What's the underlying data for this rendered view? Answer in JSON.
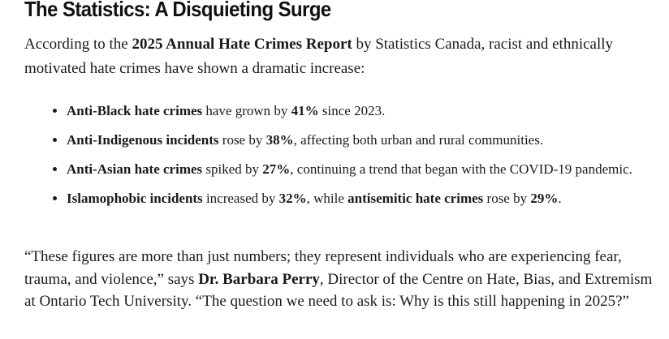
{
  "heading": "The Statistics: A Disquieting Surge",
  "intro": {
    "t1": "According to the ",
    "b1": "2025 Annual Hate Crimes Report",
    "t2": " by Statistics Canada, racist and ethnically motivated hate crimes have shown a dramatic increase:"
  },
  "bullets": [
    {
      "b1": "Anti-Black hate crimes",
      "t1": " have grown by ",
      "b2": "41%",
      "t2": " since 2023."
    },
    {
      "b1": "Anti-Indigenous incidents",
      "t1": " rose by ",
      "b2": "38%",
      "t2": ", affecting both urban and rural communities."
    },
    {
      "b1": "Anti-Asian hate crimes",
      "t1": " spiked by ",
      "b2": "27%",
      "t2": ", continuing a trend that began with the COVID-19 pandemic."
    },
    {
      "b1": "Islamophobic incidents",
      "t1": " increased by ",
      "b2": "32%",
      "t2": ", while ",
      "b3": "antisemitic hate crimes",
      "t3": " rose by ",
      "b4": "29%",
      "t4": "."
    }
  ],
  "quote": {
    "t1": "“These figures are more than just numbers; they represent individuals who are experiencing fear, trauma, and violence,” says ",
    "b1": "Dr. Barbara Perry",
    "t2": ", Director of the Centre on Hate, Bias, and Extremism at Ontario Tech University. “The question we need to ask is: Why is this still happening in 2025?”"
  }
}
